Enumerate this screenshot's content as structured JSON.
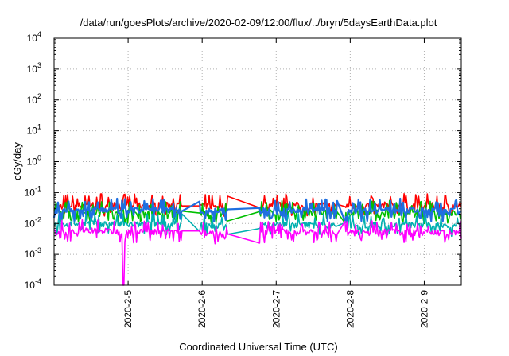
{
  "chart_data": {
    "type": "line",
    "title": "/data/run/goesPlots/archive/2020-02-09/12:00/flux/../bryn/5daysEarthData.plot",
    "xlabel": "Coordinated Universal Time (UTC)",
    "ylabel": "cGy/day",
    "y_scale": "log",
    "ylim": [
      0.0001,
      10000
    ],
    "y_ticks": [
      {
        "value": 0.0001,
        "base": "10",
        "exp": "-4"
      },
      {
        "value": 0.001,
        "base": "10",
        "exp": "-3"
      },
      {
        "value": 0.01,
        "base": "10",
        "exp": "-2"
      },
      {
        "value": 0.1,
        "base": "10",
        "exp": "-1"
      },
      {
        "value": 1,
        "base": "10",
        "exp": "0"
      },
      {
        "value": 10,
        "base": "10",
        "exp": "1"
      },
      {
        "value": 100,
        "base": "10",
        "exp": "2"
      },
      {
        "value": 1000,
        "base": "10",
        "exp": "3"
      },
      {
        "value": 10000,
        "base": "10",
        "exp": "4"
      }
    ],
    "xlim": [
      "2020-02-04T00:00",
      "2020-02-09T12:00"
    ],
    "x_ticks": [
      {
        "value": "2020-02-05T00:00",
        "label": "2020-2-5"
      },
      {
        "value": "2020-02-06T00:00",
        "label": "2020-2-6"
      },
      {
        "value": "2020-02-07T00:00",
        "label": "2020-2-7"
      },
      {
        "value": "2020-02-08T00:00",
        "label": "2020-2-8"
      },
      {
        "value": "2020-02-09T00:00",
        "label": "2020-2-9"
      }
    ],
    "grid": true,
    "legend": "none",
    "gaps": [
      [
        "2020-02-05T17:30",
        "2020-02-05T23:00"
      ],
      [
        "2020-02-06T08:30",
        "2020-02-06T18:30"
      ],
      [
        "2020-02-07T20:00",
        "2020-02-07T22:00"
      ]
    ],
    "dropout": {
      "x": "2020-02-04T22:30",
      "y": 0.0001
    },
    "series": [
      {
        "color": "#ff0000",
        "points": [
          [
            "2020-02-04T00:00",
            0.035
          ],
          [
            "2020-02-04T12:00",
            0.04
          ],
          [
            "2020-02-05T00:00",
            0.037
          ],
          [
            "2020-02-05T12:00",
            0.039
          ],
          [
            "2020-02-06T00:00",
            0.036
          ],
          [
            "2020-02-06T12:00",
            0.035
          ],
          [
            "2020-02-07T00:00",
            0.04
          ],
          [
            "2020-02-07T12:00",
            0.038
          ],
          [
            "2020-02-08T00:00",
            0.036
          ],
          [
            "2020-02-08T12:00",
            0.04
          ],
          [
            "2020-02-09T00:00",
            0.038
          ],
          [
            "2020-02-09T12:00",
            0.036
          ]
        ]
      },
      {
        "color": "#00c000",
        "points": [
          [
            "2020-02-04T00:00",
            0.022
          ],
          [
            "2020-02-04T12:00",
            0.024
          ],
          [
            "2020-02-05T00:00",
            0.022
          ],
          [
            "2020-02-05T12:00",
            0.023
          ],
          [
            "2020-02-06T00:00",
            0.021
          ],
          [
            "2020-02-06T12:00",
            0.02
          ],
          [
            "2020-02-07T00:00",
            0.023
          ],
          [
            "2020-02-07T12:00",
            0.022
          ],
          [
            "2020-02-08T00:00",
            0.021
          ],
          [
            "2020-02-08T12:00",
            0.023
          ],
          [
            "2020-02-09T00:00",
            0.022
          ],
          [
            "2020-02-09T12:00",
            0.021
          ]
        ]
      },
      {
        "color": "#1f6fe0",
        "points": [
          [
            "2020-02-04T00:00",
            0.025
          ],
          [
            "2020-02-04T12:00",
            0.028
          ],
          [
            "2020-02-05T00:00",
            0.026
          ],
          [
            "2020-02-05T12:00",
            0.027
          ],
          [
            "2020-02-06T00:00",
            0.025
          ],
          [
            "2020-02-06T12:00",
            0.024
          ],
          [
            "2020-02-07T00:00",
            0.027
          ],
          [
            "2020-02-07T12:00",
            0.026
          ],
          [
            "2020-02-08T00:00",
            0.025
          ],
          [
            "2020-02-08T12:00",
            0.027
          ],
          [
            "2020-02-09T00:00",
            0.026
          ],
          [
            "2020-02-09T12:00",
            0.025
          ]
        ]
      },
      {
        "color": "#00b0b0",
        "points": [
          [
            "2020-02-04T00:00",
            0.009
          ],
          [
            "2020-02-04T12:00",
            0.01
          ],
          [
            "2020-02-05T00:00",
            0.009
          ],
          [
            "2020-02-05T12:00",
            0.0095
          ],
          [
            "2020-02-06T00:00",
            0.0085
          ],
          [
            "2020-02-06T12:00",
            0.008
          ],
          [
            "2020-02-07T00:00",
            0.009
          ],
          [
            "2020-02-07T12:00",
            0.0088
          ],
          [
            "2020-02-08T00:00",
            0.0085
          ],
          [
            "2020-02-08T12:00",
            0.009
          ],
          [
            "2020-02-09T00:00",
            0.0088
          ],
          [
            "2020-02-09T12:00",
            0.0085
          ]
        ]
      },
      {
        "color": "#ff00ff",
        "points": [
          [
            "2020-02-04T00:00",
            0.005
          ],
          [
            "2020-02-04T12:00",
            0.006
          ],
          [
            "2020-02-05T00:00",
            0.005
          ],
          [
            "2020-02-05T12:00",
            0.0055
          ],
          [
            "2020-02-06T00:00",
            0.0048
          ],
          [
            "2020-02-06T12:00",
            0.0045
          ],
          [
            "2020-02-07T00:00",
            0.005
          ],
          [
            "2020-02-07T12:00",
            0.0052
          ],
          [
            "2020-02-08T00:00",
            0.0048
          ],
          [
            "2020-02-08T12:00",
            0.0053
          ],
          [
            "2020-02-09T00:00",
            0.005
          ],
          [
            "2020-02-09T12:00",
            0.0048
          ]
        ]
      }
    ]
  }
}
